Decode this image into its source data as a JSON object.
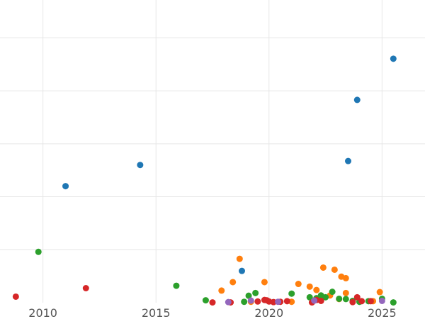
{
  "chart_data": {
    "type": "scatter",
    "title": "",
    "xlabel": "",
    "ylabel": "",
    "xlim": [
      2008.1,
      2026.9
    ],
    "ylim": [
      0,
      100
    ],
    "grid": true,
    "legend": "none",
    "x_ticks": [
      "2010",
      "2015",
      "2020",
      "2025"
    ],
    "y_grid_values": [
      17.5,
      35,
      52.5,
      70,
      87.5
    ],
    "series": [
      {
        "color": "#1f77b4",
        "points": [
          [
            2011.0,
            38.5
          ],
          [
            2014.3,
            45.5
          ],
          [
            2018.8,
            10.5
          ],
          [
            2023.5,
            46.8
          ],
          [
            2023.9,
            67.0
          ],
          [
            2025.5,
            80.6
          ]
        ]
      },
      {
        "color": "#ff7f0e",
        "points": [
          [
            2017.9,
            4.0
          ],
          [
            2018.4,
            6.8
          ],
          [
            2018.7,
            14.5
          ],
          [
            2019.8,
            6.8
          ],
          [
            2021.3,
            6.2
          ],
          [
            2021.8,
            5.3
          ],
          [
            2022.1,
            4.2
          ],
          [
            2022.4,
            11.6
          ],
          [
            2022.7,
            2.4
          ],
          [
            2022.9,
            10.9
          ],
          [
            2023.2,
            8.6
          ],
          [
            2023.4,
            8.1
          ],
          [
            2023.4,
            3.2
          ],
          [
            2023.1,
            1.2
          ],
          [
            2024.6,
            0.5
          ],
          [
            2024.9,
            3.5
          ],
          [
            2021.0,
            0.3
          ],
          [
            2019.2,
            0.3
          ]
        ]
      },
      {
        "color": "#2ca02c",
        "points": [
          [
            2009.8,
            16.8
          ],
          [
            2015.9,
            5.6
          ],
          [
            2017.2,
            0.8
          ],
          [
            2018.9,
            0.3
          ],
          [
            2019.1,
            2.3
          ],
          [
            2019.4,
            3.2
          ],
          [
            2021.0,
            3.0
          ],
          [
            2021.8,
            1.8
          ],
          [
            2022.1,
            1.5
          ],
          [
            2022.3,
            2.4
          ],
          [
            2022.5,
            1.8
          ],
          [
            2022.8,
            3.6
          ],
          [
            2023.1,
            1.3
          ],
          [
            2023.4,
            1.2
          ],
          [
            2023.7,
            0.6
          ],
          [
            2024.0,
            0.3
          ],
          [
            2024.4,
            0.5
          ],
          [
            2025.0,
            1.3
          ],
          [
            2025.5,
            0.1
          ]
        ]
      },
      {
        "color": "#d62728",
        "points": [
          [
            2008.8,
            2.0
          ],
          [
            2011.9,
            4.8
          ],
          [
            2017.5,
            0.1
          ],
          [
            2018.3,
            0.1
          ],
          [
            2019.5,
            0.4
          ],
          [
            2019.8,
            0.9
          ],
          [
            2019.9,
            0.8
          ],
          [
            2020.0,
            0.4
          ],
          [
            2020.2,
            0.2
          ],
          [
            2020.5,
            0.3
          ],
          [
            2020.8,
            0.5
          ],
          [
            2021.9,
            0.1
          ],
          [
            2022.1,
            0.9
          ],
          [
            2022.3,
            0.6
          ],
          [
            2023.7,
            0.2
          ],
          [
            2023.9,
            1.8
          ],
          [
            2024.1,
            0.5
          ],
          [
            2024.5,
            0.5
          ]
        ]
      },
      {
        "color": "#9467bd",
        "points": [
          [
            2018.2,
            0.2
          ],
          [
            2019.2,
            0.7
          ],
          [
            2020.4,
            0.3
          ],
          [
            2022.0,
            0.7
          ],
          [
            2025.0,
            0.6
          ]
        ]
      }
    ]
  }
}
